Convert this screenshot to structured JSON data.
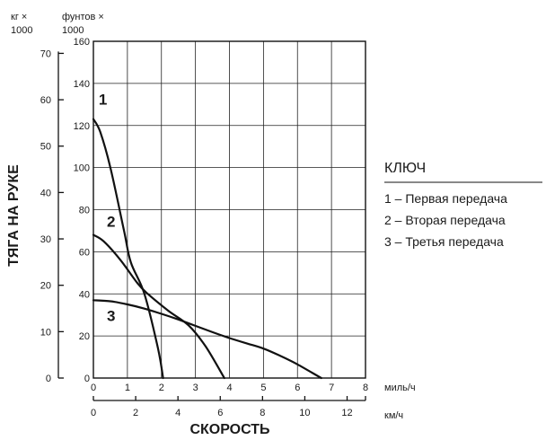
{
  "chart_data": {
    "type": "line",
    "title": "",
    "xlabel": "СКОРОСТЬ",
    "ylabel": "ТЯГА НА РУКЕ",
    "x_primary": {
      "unit": "миль/ч",
      "ticks": [
        "0",
        "1",
        "2",
        "3",
        "4",
        "5",
        "6",
        "7",
        "8"
      ],
      "range": [
        0,
        8
      ]
    },
    "x_secondary": {
      "unit": "км/ч",
      "ticks": [
        "0",
        "2",
        "4",
        "6",
        "8",
        "10",
        "12"
      ],
      "range": [
        0,
        12.87
      ]
    },
    "y_primary": {
      "unit_line1": "кг ×",
      "unit_line2": "1000",
      "ticks": [
        "0",
        "10",
        "20",
        "30",
        "40",
        "50",
        "60",
        "70"
      ],
      "range": [
        0,
        72.6
      ]
    },
    "y_secondary": {
      "unit_line1": "фунтов ×",
      "unit_line2": "1000",
      "ticks": [
        "0",
        "20",
        "40",
        "60",
        "80",
        "100",
        "120",
        "140",
        "160"
      ],
      "range": [
        0,
        160
      ]
    },
    "grid": true,
    "series": [
      {
        "name": "1",
        "x": [
          0,
          0.2,
          0.5,
          0.9,
          1.1,
          1.5,
          1.9,
          2.05
        ],
        "y": [
          123,
          117,
          100,
          70,
          55,
          40,
          14,
          0
        ]
      },
      {
        "name": "2",
        "x": [
          0,
          0.3,
          0.8,
          1.3,
          1.6,
          2.2,
          2.8,
          3.3,
          3.85
        ],
        "y": [
          68,
          65,
          56,
          45,
          40,
          32,
          25,
          15,
          0
        ]
      },
      {
        "name": "3",
        "x": [
          0,
          0.5,
          1.0,
          1.5,
          2.0,
          2.5,
          3.0,
          3.5,
          4.0,
          4.5,
          5.0,
          5.5,
          6.0,
          6.7
        ],
        "y": [
          37,
          36.5,
          35,
          33,
          30.5,
          27.8,
          24.8,
          21.8,
          19,
          16.5,
          14,
          10.5,
          6.5,
          0
        ]
      }
    ],
    "curve_labels": [
      "1",
      "2",
      "3"
    ],
    "legend": {
      "title": "КЛЮЧ",
      "items": [
        "1 – Первая передача",
        "2 – Вторая передача",
        "3 – Третья передача"
      ],
      "placement": "right"
    }
  }
}
